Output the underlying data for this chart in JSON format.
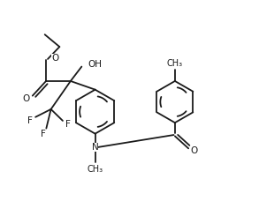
{
  "bg_color": "#ffffff",
  "line_color": "#1a1a1a",
  "line_width": 1.3,
  "font_size": 7.5,
  "figsize": [
    2.93,
    2.45
  ],
  "dpi": 100,
  "xlim": [
    0,
    10.5
  ],
  "ylim": [
    0,
    8.5
  ]
}
